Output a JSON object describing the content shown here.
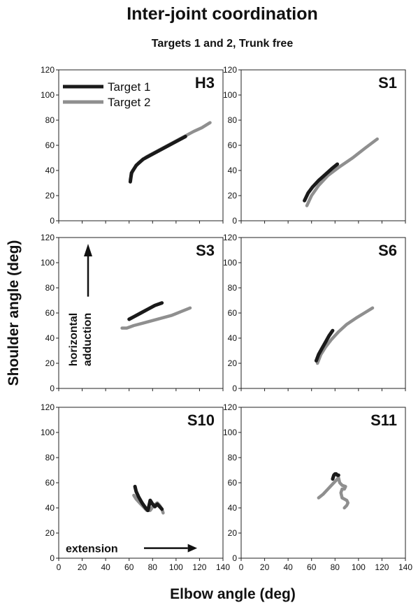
{
  "title": "Inter-joint coordination",
  "subtitle": "Targets 1 and 2, Trunk free",
  "xlabel": "Elbow angle (deg)",
  "ylabel": "Shoulder angle (deg)",
  "legend": [
    "Target 1",
    "Target 2"
  ],
  "colors": {
    "target1": "#1a1a1a",
    "target2": "#8f8f8f"
  },
  "annotations": {
    "vertical": [
      "horizontal",
      "adduction"
    ],
    "horizontal": "extension"
  },
  "chart_data": [
    {
      "type": "line",
      "panel": "H3",
      "xlim": [
        0,
        140
      ],
      "ylim": [
        0,
        120
      ],
      "xticks": [
        "0",
        "20",
        "40",
        "60",
        "80",
        "100",
        "120",
        "140"
      ],
      "yticks": [
        "0",
        "20",
        "40",
        "60",
        "80",
        "100",
        "120"
      ],
      "series": [
        {
          "name": "Target 1",
          "x": [
            61,
            62,
            66,
            72,
            80,
            90,
            100,
            108
          ],
          "y": [
            31,
            38,
            44,
            49,
            53,
            58,
            63,
            67
          ]
        },
        {
          "name": "Target 2",
          "x": [
            61,
            63,
            68,
            75,
            85,
            95,
            105,
            115,
            122,
            129
          ],
          "y": [
            33,
            40,
            46,
            51,
            56,
            61,
            66,
            71,
            74,
            78
          ]
        }
      ]
    },
    {
      "type": "line",
      "panel": "S1",
      "xlim": [
        0,
        140
      ],
      "ylim": [
        0,
        120
      ],
      "xticks": [
        "0",
        "20",
        "40",
        "60",
        "80",
        "100",
        "120",
        "140"
      ],
      "yticks": [
        "0",
        "20",
        "40",
        "60",
        "80",
        "100",
        "120"
      ],
      "series": [
        {
          "name": "Target 1",
          "x": [
            54,
            57,
            61,
            66,
            72,
            78,
            82
          ],
          "y": [
            16,
            22,
            27,
            32,
            37,
            42,
            45
          ]
        },
        {
          "name": "Target 2",
          "x": [
            56,
            60,
            66,
            74,
            84,
            95,
            106,
            116
          ],
          "y": [
            12,
            20,
            28,
            36,
            43,
            50,
            58,
            65
          ]
        }
      ]
    },
    {
      "type": "line",
      "panel": "S3",
      "xlim": [
        0,
        140
      ],
      "ylim": [
        0,
        120
      ],
      "xticks": [
        "0",
        "20",
        "40",
        "60",
        "80",
        "100",
        "120",
        "140"
      ],
      "yticks": [
        "0",
        "20",
        "40",
        "60",
        "80",
        "100",
        "120"
      ],
      "series": [
        {
          "name": "Target 1",
          "x": [
            60,
            64,
            70,
            76,
            82,
            88
          ],
          "y": [
            55,
            57,
            60,
            63,
            66,
            68
          ]
        },
        {
          "name": "Target 2",
          "x": [
            54,
            58,
            64,
            72,
            80,
            88,
            96,
            104,
            112
          ],
          "y": [
            48,
            48,
            50,
            52,
            54,
            56,
            58,
            61,
            64
          ]
        }
      ]
    },
    {
      "type": "line",
      "panel": "S6",
      "xlim": [
        0,
        140
      ],
      "ylim": [
        0,
        120
      ],
      "xticks": [
        "0",
        "20",
        "40",
        "60",
        "80",
        "100",
        "120",
        "140"
      ],
      "yticks": [
        "0",
        "20",
        "40",
        "60",
        "80",
        "100",
        "120"
      ],
      "series": [
        {
          "name": "Target 1",
          "x": [
            64,
            66,
            69,
            72,
            75,
            78
          ],
          "y": [
            22,
            27,
            32,
            37,
            42,
            46
          ]
        },
        {
          "name": "Target 2",
          "x": [
            65,
            68,
            72,
            77,
            83,
            90,
            98,
            105,
            112
          ],
          "y": [
            20,
            27,
            33,
            39,
            45,
            51,
            56,
            60,
            64
          ]
        }
      ]
    },
    {
      "type": "line",
      "panel": "S10",
      "xlim": [
        0,
        140
      ],
      "ylim": [
        0,
        120
      ],
      "xticks": [
        "0",
        "20",
        "40",
        "60",
        "80",
        "100",
        "120",
        "140"
      ],
      "yticks": [
        "0",
        "20",
        "40",
        "60",
        "80",
        "100",
        "120"
      ],
      "series": [
        {
          "name": "Target 1",
          "x": [
            65,
            66,
            68,
            71,
            74,
            76,
            77,
            78,
            80,
            82,
            84,
            86,
            88
          ],
          "y": [
            57,
            53,
            49,
            44,
            40,
            38,
            42,
            46,
            43,
            41,
            43,
            41,
            39
          ]
        },
        {
          "name": "Target 2",
          "x": [
            64,
            66,
            69,
            72,
            75,
            78,
            81,
            84,
            86,
            88,
            89
          ],
          "y": [
            50,
            47,
            44,
            41,
            38,
            38,
            42,
            44,
            42,
            39,
            36
          ]
        }
      ]
    },
    {
      "type": "line",
      "panel": "S11",
      "xlim": [
        0,
        140
      ],
      "ylim": [
        0,
        120
      ],
      "xticks": [
        "0",
        "20",
        "40",
        "60",
        "80",
        "100",
        "120",
        "140"
      ],
      "yticks": [
        "0",
        "20",
        "40",
        "60",
        "80",
        "100",
        "120"
      ],
      "series": [
        {
          "name": "Target 1",
          "x": [
            78,
            79,
            80,
            81,
            82,
            83
          ],
          "y": [
            63,
            66,
            67,
            67,
            66,
            66
          ]
        },
        {
          "name": "Target 2",
          "x": [
            66,
            70,
            74,
            78,
            81,
            83,
            84,
            86,
            89,
            88,
            86,
            85,
            86,
            88,
            90,
            91,
            90,
            88
          ],
          "y": [
            48,
            51,
            55,
            59,
            62,
            64,
            60,
            58,
            57,
            55,
            55,
            52,
            48,
            47,
            46,
            44,
            42,
            40
          ]
        }
      ]
    }
  ]
}
